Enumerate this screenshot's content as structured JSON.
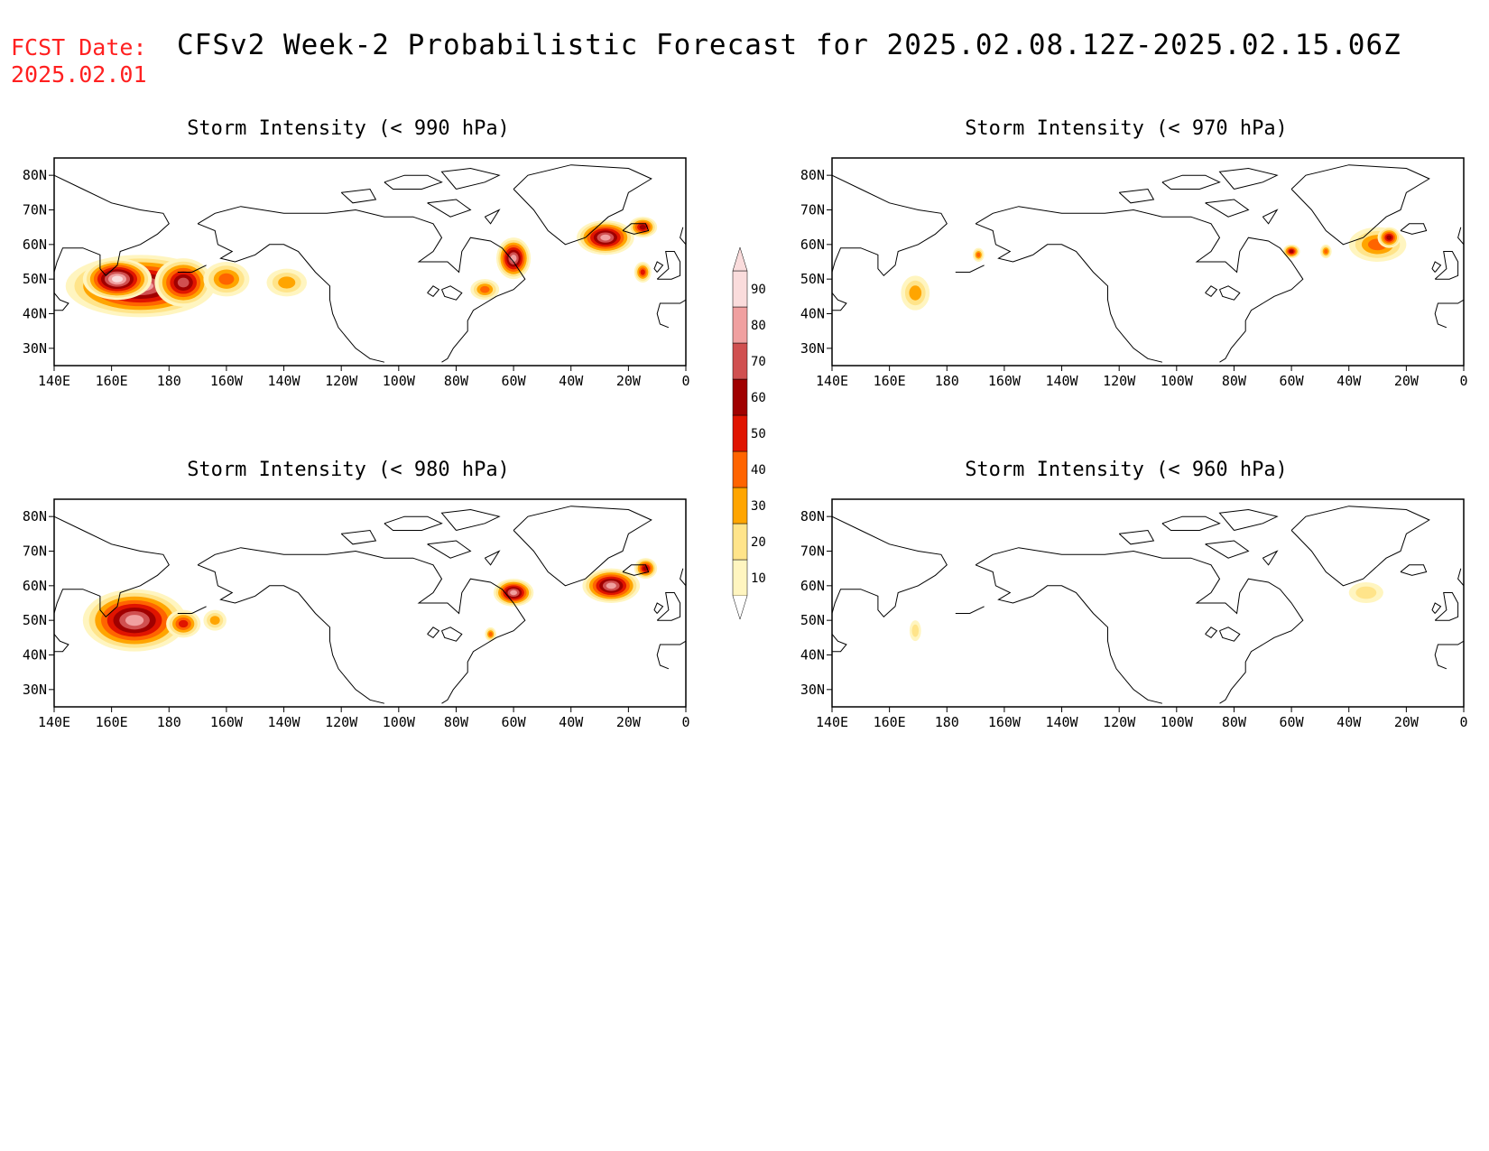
{
  "header": {
    "fcst_label": "FCST Date:",
    "fcst_date": "2025.02.01",
    "title": "CFSv2 Week-2 Probabilistic Forecast for 2025.02.08.12Z-2025.02.15.06Z"
  },
  "axes": {
    "lon_ticks": [
      "140E",
      "160E",
      "180",
      "160W",
      "140W",
      "120W",
      "100W",
      "80W",
      "60W",
      "40W",
      "20W",
      "0"
    ],
    "lat_ticks": [
      "80N",
      "70N",
      "60N",
      "50N",
      "40N",
      "30N"
    ]
  },
  "colors": {
    "levels": [
      10,
      20,
      30,
      40,
      50,
      60,
      70,
      80,
      90
    ],
    "fills": [
      "#fff5c0",
      "#ffe48a",
      "#ffa500",
      "#ff6400",
      "#e01400",
      "#a00000",
      "#d05050",
      "#f0a0a0",
      "#fadcdc"
    ]
  },
  "legend": {
    "labels": [
      "90",
      "80",
      "70",
      "60",
      "50",
      "40",
      "30",
      "20",
      "10"
    ]
  },
  "panels": [
    {
      "id": "p990",
      "title": "Storm Intensity (< 990 hPa)",
      "blobs": [
        {
          "lon": 170,
          "lat": 48,
          "rx": 26,
          "ry": 9,
          "p": 80
        },
        {
          "lon": 162,
          "lat": 50,
          "rx": 12,
          "ry": 6,
          "p": 90
        },
        {
          "lon": 185,
          "lat": 49,
          "rx": 10,
          "ry": 7,
          "p": 70
        },
        {
          "lon": 200,
          "lat": 50,
          "rx": 8,
          "ry": 5,
          "p": 40
        },
        {
          "lon": 221,
          "lat": 49,
          "rx": 7,
          "ry": 4,
          "p": 30
        },
        {
          "lon": 300,
          "lat": 56,
          "rx": 6,
          "ry": 6,
          "p": 80
        },
        {
          "lon": 290,
          "lat": 47,
          "rx": 5,
          "ry": 3,
          "p": 40
        },
        {
          "lon": 332,
          "lat": 62,
          "rx": 10,
          "ry": 5,
          "p": 80
        },
        {
          "lon": 345,
          "lat": 65,
          "rx": 5,
          "ry": 3,
          "p": 60
        },
        {
          "lon": 345,
          "lat": 52,
          "rx": 3,
          "ry": 3,
          "p": 50
        }
      ]
    },
    {
      "id": "p970",
      "title": "Storm Intensity (< 970 hPa)",
      "blobs": [
        {
          "lon": 169,
          "lat": 46,
          "rx": 5,
          "ry": 5,
          "p": 30
        },
        {
          "lon": 191,
          "lat": 57,
          "rx": 2,
          "ry": 2,
          "p": 40
        },
        {
          "lon": 300,
          "lat": 58,
          "rx": 3,
          "ry": 2,
          "p": 60
        },
        {
          "lon": 312,
          "lat": 58,
          "rx": 2,
          "ry": 2,
          "p": 40
        },
        {
          "lon": 330,
          "lat": 60,
          "rx": 10,
          "ry": 5,
          "p": 40
        },
        {
          "lon": 334,
          "lat": 62,
          "rx": 4,
          "ry": 3,
          "p": 60
        }
      ]
    },
    {
      "id": "p980",
      "title": "Storm Intensity (< 980 hPa)",
      "blobs": [
        {
          "lon": 168,
          "lat": 50,
          "rx": 18,
          "ry": 9,
          "p": 80
        },
        {
          "lon": 185,
          "lat": 49,
          "rx": 6,
          "ry": 4,
          "p": 50
        },
        {
          "lon": 196,
          "lat": 50,
          "rx": 4,
          "ry": 3,
          "p": 30
        },
        {
          "lon": 300,
          "lat": 58,
          "rx": 7,
          "ry": 4,
          "p": 80
        },
        {
          "lon": 292,
          "lat": 46,
          "rx": 2,
          "ry": 2,
          "p": 40
        },
        {
          "lon": 334,
          "lat": 60,
          "rx": 10,
          "ry": 5,
          "p": 80
        },
        {
          "lon": 346,
          "lat": 65,
          "rx": 4,
          "ry": 3,
          "p": 60
        }
      ]
    },
    {
      "id": "p960",
      "title": "Storm Intensity (< 960 hPa)",
      "blobs": [
        {
          "lon": 169,
          "lat": 47,
          "rx": 2,
          "ry": 3,
          "p": 20
        },
        {
          "lon": 326,
          "lat": 58,
          "rx": 6,
          "ry": 3,
          "p": 20
        }
      ]
    }
  ]
}
